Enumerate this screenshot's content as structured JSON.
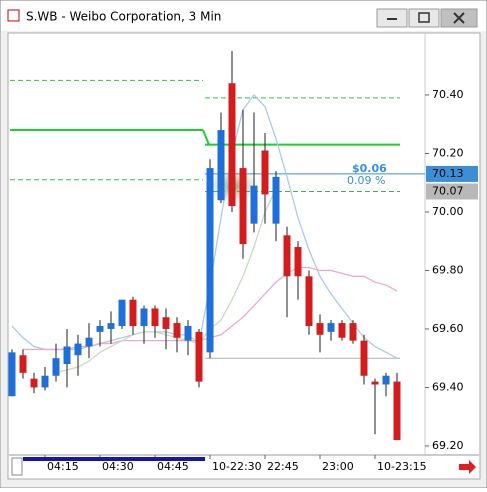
{
  "window": {
    "title": "S.WB - Weibo Corporation, 3 Min"
  },
  "chart_data": {
    "type": "candlestick",
    "categories": [
      null,
      null,
      null,
      "04:15",
      null,
      null,
      null,
      null,
      "04:30",
      null,
      null,
      null,
      null,
      "04:45",
      null,
      null,
      null,
      null,
      "10-22:30",
      null,
      null,
      null,
      null,
      "22:45",
      null,
      null,
      null,
      null,
      "23:00",
      null,
      null,
      null,
      null,
      "10-23:15",
      null,
      null
    ],
    "open": [
      69.37,
      69.51,
      69.43,
      69.4,
      69.44,
      69.48,
      69.51,
      69.54,
      69.59,
      69.6,
      69.61,
      69.7,
      69.61,
      69.67,
      69.64,
      69.62,
      69.56,
      69.59,
      69.52,
      70.04,
      70.44,
      70.15,
      69.96,
      70.21,
      69.96,
      69.92,
      69.88,
      69.78,
      69.62,
      69.59,
      69.62,
      69.62,
      69.56,
      69.42,
      69.41,
      69.42
    ],
    "high": [
      69.53,
      69.53,
      69.45,
      69.47,
      69.55,
      69.6,
      69.58,
      69.62,
      69.63,
      69.66,
      69.7,
      69.71,
      69.68,
      69.68,
      69.67,
      69.64,
      69.63,
      69.6,
      70.18,
      70.34,
      70.55,
      70.35,
      70.34,
      70.27,
      70.14,
      69.95,
      69.9,
      69.8,
      69.65,
      69.63,
      69.63,
      69.63,
      69.58,
      69.43,
      69.45,
      69.45
    ],
    "low": [
      69.37,
      69.43,
      69.38,
      69.39,
      69.42,
      69.4,
      69.44,
      69.5,
      69.54,
      69.55,
      69.6,
      69.58,
      69.55,
      69.57,
      69.53,
      69.52,
      69.51,
      69.4,
      69.5,
      70.03,
      70.0,
      69.84,
      69.93,
      69.96,
      69.9,
      69.64,
      69.7,
      69.58,
      69.52,
      69.56,
      69.56,
      69.55,
      69.41,
      69.24,
      69.37,
      69.22
    ],
    "close": [
      69.52,
      69.45,
      69.4,
      69.44,
      69.5,
      69.54,
      69.55,
      69.57,
      69.61,
      69.62,
      69.7,
      69.61,
      69.67,
      69.61,
      69.6,
      69.57,
      69.61,
      69.42,
      70.15,
      70.28,
      70.02,
      69.89,
      70.09,
      70.06,
      70.12,
      69.78,
      69.78,
      69.61,
      69.58,
      69.62,
      69.57,
      69.56,
      69.44,
      69.41,
      69.44,
      69.22
    ],
    "up_color": "#1e6fd9",
    "down_color": "#d41c1c",
    "lines": [
      {
        "color": "#a9cbe8",
        "values": [
          69.61,
          69.57,
          69.54,
          69.53,
          69.53,
          69.53,
          69.53,
          69.54,
          69.55,
          69.56,
          69.57,
          69.58,
          69.59,
          69.59,
          69.59,
          69.58,
          69.58,
          69.55,
          69.75,
          69.98,
          70.2,
          70.35,
          70.4,
          70.36,
          70.25,
          70.12,
          69.98,
          69.87,
          69.78,
          69.72,
          69.67,
          69.62,
          69.57,
          69.54,
          69.52,
          69.5
        ]
      },
      {
        "color": "#f0a8d0",
        "values": [
          null,
          69.53,
          69.53,
          69.53,
          69.53,
          69.53,
          69.54,
          69.54,
          69.55,
          69.55,
          69.56,
          69.56,
          69.56,
          69.56,
          69.56,
          69.56,
          69.56,
          69.56,
          69.57,
          69.58,
          69.61,
          69.64,
          69.68,
          69.72,
          69.76,
          69.79,
          69.81,
          69.81,
          69.8,
          69.8,
          69.79,
          69.78,
          69.78,
          69.76,
          69.75,
          69.73
        ]
      },
      {
        "color": "#c6dcc0",
        "values": [
          null,
          null,
          null,
          null,
          69.45,
          69.46,
          69.47,
          69.49,
          69.52,
          69.54,
          69.56,
          69.58,
          69.59,
          69.59,
          69.58,
          69.57,
          69.56,
          69.55,
          69.6,
          69.63,
          69.7,
          69.78,
          69.88,
          70.0,
          70.08,
          null,
          null,
          null,
          null,
          null,
          null,
          null,
          null,
          null,
          null,
          null
        ]
      }
    ],
    "levels": [
      {
        "value": 70.45,
        "color": "#2ec24a",
        "style": "dashed",
        "span": "left"
      },
      {
        "value": 70.11,
        "color": "#2ec24a",
        "style": "dashed",
        "span": "left"
      },
      {
        "value": 70.28,
        "color": "#22cc33",
        "style": "solid",
        "span": "left"
      },
      {
        "value": 70.23,
        "color": "#22cc33",
        "style": "solid",
        "span": "right"
      },
      {
        "value": 70.39,
        "color": "#2ec24a",
        "style": "dashed",
        "span": "right"
      },
      {
        "value": 70.07,
        "color": "#2ec24a",
        "style": "dashed",
        "span": "right"
      },
      {
        "value": 70.13,
        "color": "#3a8fd6",
        "style": "solid",
        "span": "right"
      },
      {
        "value": 69.5,
        "color": "#b0b0b0",
        "style": "solid",
        "span": "right"
      }
    ],
    "price_labels": [
      {
        "value": 70.13,
        "background": "#3a8fd6"
      },
      {
        "value": 70.07,
        "background": "#b8b8b8"
      }
    ],
    "annotations": [
      "$0.06",
      "0.09 %"
    ],
    "ylim": [
      69.169,
      70.605
    ],
    "yticks": [
      {
        "value": 70.4,
        "label": "70.40"
      },
      {
        "value": 70.2,
        "label": "70.20"
      },
      {
        "value": 70.0,
        "label": "70.00"
      },
      {
        "value": 69.8,
        "label": "69.80"
      },
      {
        "value": 69.6,
        "label": "69.60"
      },
      {
        "value": 69.4,
        "label": "69.40"
      },
      {
        "value": 69.2,
        "label": "69.20"
      }
    ]
  }
}
